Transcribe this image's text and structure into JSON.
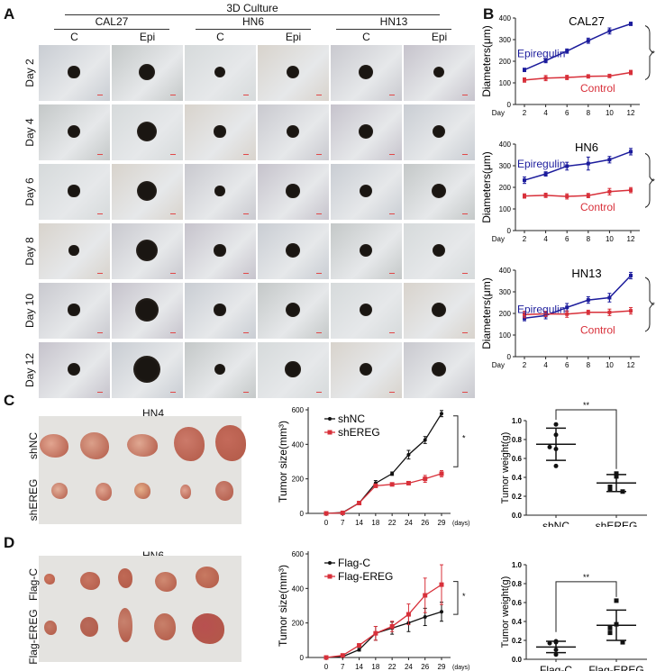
{
  "panels": {
    "A": "A",
    "B": "B",
    "C": "C",
    "D": "D"
  },
  "panelA": {
    "title": "3D Culture",
    "cell_lines": [
      "CAL27",
      "HN6",
      "HN13"
    ],
    "conditions": [
      "C",
      "Epi"
    ],
    "days": [
      "Day 2",
      "Day 4",
      "Day 6",
      "Day 8",
      "Day 10",
      "Day 12"
    ],
    "sphere_sizes_rel": [
      [
        0.3,
        0.42,
        0.28,
        0.34,
        0.36,
        0.28
      ],
      [
        0.32,
        0.52,
        0.3,
        0.33,
        0.36,
        0.34
      ],
      [
        0.3,
        0.5,
        0.26,
        0.35,
        0.34,
        0.36
      ],
      [
        0.26,
        0.56,
        0.3,
        0.36,
        0.32,
        0.34
      ],
      [
        0.3,
        0.6,
        0.3,
        0.38,
        0.34,
        0.36
      ],
      [
        0.34,
        0.68,
        0.28,
        0.4,
        0.33,
        0.36
      ]
    ],
    "tints": [
      "#c9cdd3",
      "#c4c8c8",
      "#d6dadb",
      "#d8d3cc",
      "#c9c9cf",
      "#c6c3cc"
    ]
  },
  "panelC": {
    "title": "HN4",
    "row_labels": [
      "shNC",
      "shEREG"
    ]
  },
  "panelD": {
    "title": "HN6",
    "row_labels": [
      "Flag-C",
      "Flag-EREG"
    ]
  },
  "chart_data": [
    {
      "type": "line",
      "title": "CAL27",
      "xlabel": "Day",
      "ylabel": "Diameters(μm)",
      "x": [
        2,
        4,
        6,
        8,
        10,
        12
      ],
      "ylim": [
        0,
        400
      ],
      "yticks": [
        0,
        100,
        200,
        300,
        400
      ],
      "series": [
        {
          "name": "Epiregulin",
          "color": "#1c1c9c",
          "values": [
            160,
            203,
            247,
            295,
            340,
            373
          ],
          "err": [
            8,
            10,
            10,
            12,
            14,
            8
          ]
        },
        {
          "name": "Control",
          "color": "#d8303a",
          "values": [
            113,
            122,
            125,
            130,
            132,
            148
          ],
          "err": [
            10,
            12,
            10,
            8,
            8,
            10
          ]
        }
      ],
      "significance": "*"
    },
    {
      "type": "line",
      "title": "HN6",
      "xlabel": "Day",
      "ylabel": "Diameters(μm)",
      "x": [
        2,
        4,
        6,
        8,
        10,
        12
      ],
      "ylim": [
        0,
        400
      ],
      "yticks": [
        0,
        100,
        200,
        300,
        400
      ],
      "series": [
        {
          "name": "Epiregulin",
          "color": "#1c1c9c",
          "values": [
            233,
            262,
            298,
            310,
            328,
            365
          ],
          "err": [
            15,
            10,
            18,
            30,
            15,
            15
          ]
        },
        {
          "name": "Control",
          "color": "#d8303a",
          "values": [
            160,
            163,
            158,
            162,
            180,
            187
          ],
          "err": [
            10,
            10,
            12,
            10,
            15,
            12
          ]
        }
      ],
      "significance": "*"
    },
    {
      "type": "line",
      "title": "HN13",
      "xlabel": "Day",
      "ylabel": "Diameters(μm)",
      "x": [
        2,
        4,
        6,
        8,
        10,
        12
      ],
      "ylim": [
        0,
        400
      ],
      "yticks": [
        0,
        100,
        200,
        300,
        400
      ],
      "series": [
        {
          "name": "Epiregulin",
          "color": "#1c1c9c",
          "values": [
            178,
            190,
            228,
            262,
            273,
            375
          ],
          "err": [
            12,
            15,
            18,
            15,
            20,
            15
          ]
        },
        {
          "name": "Control",
          "color": "#d8303a",
          "values": [
            195,
            198,
            197,
            205,
            205,
            212
          ],
          "err": [
            15,
            12,
            15,
            10,
            15,
            15
          ]
        }
      ],
      "significance": "*"
    },
    {
      "type": "line",
      "title": "",
      "xlabel": "(days)",
      "ylabel": "Tumor size(mm³)",
      "x": [
        0,
        7,
        14,
        18,
        22,
        24,
        26,
        29
      ],
      "ylim": [
        0,
        600
      ],
      "yticks": [
        0,
        200,
        400,
        600
      ],
      "series": [
        {
          "name": "shNC",
          "color": "#111111",
          "marker": "circle",
          "values": [
            0,
            5,
            60,
            175,
            230,
            340,
            425,
            578
          ],
          "err": [
            0,
            3,
            8,
            15,
            10,
            25,
            20,
            18
          ]
        },
        {
          "name": "shEREG",
          "color": "#d8303a",
          "marker": "square",
          "values": [
            0,
            3,
            60,
            160,
            168,
            175,
            200,
            230
          ],
          "err": [
            0,
            2,
            8,
            10,
            8,
            8,
            20,
            18
          ]
        }
      ],
      "significance": "*"
    },
    {
      "type": "scatter",
      "title": "",
      "xlabel": "",
      "ylabel": "Tumor weight(g)",
      "categories": [
        "shNC",
        "shEREG"
      ],
      "ylim": [
        0,
        1.0
      ],
      "yticks": [
        "0.0",
        "0.2",
        "0.4",
        "0.6",
        "0.8",
        "1.0"
      ],
      "groups": [
        {
          "name": "shNC",
          "marker": "circle",
          "points": [
            0.96,
            0.85,
            0.72,
            0.7,
            0.52
          ],
          "mean": 0.75,
          "sd": 0.17
        },
        {
          "name": "shEREG",
          "marker": "square",
          "points": [
            0.44,
            0.41,
            0.3,
            0.27,
            0.25
          ],
          "mean": 0.34,
          "sd": 0.09
        }
      ],
      "significance": "**"
    },
    {
      "type": "line",
      "title": "",
      "xlabel": "(days)",
      "ylabel": "Tumor size(mm³)",
      "x": [
        0,
        7,
        14,
        18,
        22,
        24,
        26,
        29
      ],
      "ylim": [
        0,
        600
      ],
      "yticks": [
        0,
        200,
        400,
        600
      ],
      "series": [
        {
          "name": "Flag-C",
          "color": "#111111",
          "marker": "circle",
          "values": [
            0,
            5,
            45,
            140,
            170,
            200,
            235,
            265
          ],
          "err": [
            0,
            3,
            8,
            40,
            35,
            50,
            50,
            55
          ]
        },
        {
          "name": "Flag-EREG",
          "color": "#d8303a",
          "marker": "square",
          "values": [
            0,
            12,
            70,
            140,
            180,
            250,
            360,
            422
          ],
          "err": [
            0,
            5,
            10,
            40,
            30,
            60,
            100,
            115
          ]
        }
      ],
      "significance": "*"
    },
    {
      "type": "scatter",
      "title": "",
      "xlabel": "",
      "ylabel": "Tumor weight(g)",
      "categories": [
        "Flag-C",
        "Flag-EREG"
      ],
      "ylim": [
        0,
        1.0
      ],
      "yticks": [
        "0.0",
        "0.2",
        "0.4",
        "0.6",
        "0.8",
        "1.0"
      ],
      "groups": [
        {
          "name": "Flag-C",
          "marker": "circle",
          "points": [
            0.19,
            0.18,
            0.17,
            0.1,
            0.05
          ],
          "mean": 0.13,
          "sd": 0.06
        },
        {
          "name": "Flag-EREG",
          "marker": "square",
          "points": [
            0.62,
            0.37,
            0.33,
            0.28,
            0.18
          ],
          "mean": 0.36,
          "sd": 0.16
        }
      ],
      "significance": "**"
    }
  ]
}
